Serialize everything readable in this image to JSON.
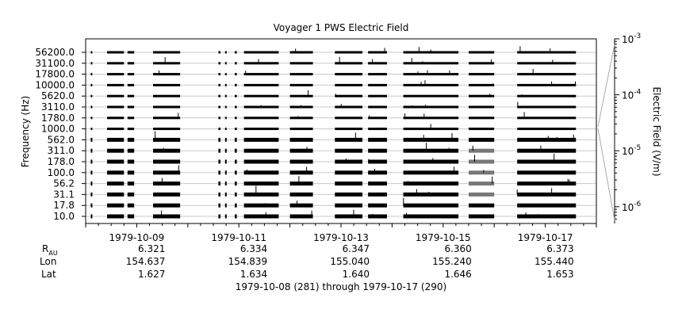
{
  "chart_data": {
    "type": "bar",
    "title": "Voyager 1 PWS Electric Field",
    "ylabel": "Frequency (Hz)",
    "y2label": "Electric Field (V/m)",
    "footer": "1979-10-08 (281) through 1979-10-17 (290)",
    "channels": [
      "56200.0",
      "31100.0",
      "17800.0",
      "10000.0",
      "5620.0",
      "3110.0",
      "1780.0",
      "1000.0",
      "562.0",
      "311.0",
      "178.0",
      "100.0",
      "56.2",
      "31.1",
      "17.8",
      "10.0"
    ],
    "x_ticks": [
      "1979-10-09",
      "1979-10-11",
      "1979-10-13",
      "1979-10-15",
      "1979-10-17"
    ],
    "x_range_days": [
      0,
      10
    ],
    "y2_ticks": [
      "10^-3",
      "10^-4",
      "10^-5",
      "10^-6"
    ],
    "y2_scale": "log",
    "ephemeris": {
      "row_labels": [
        "R_AU",
        "Lon",
        "Lat"
      ],
      "rau": [
        "6.321",
        "6.334",
        "6.347",
        "6.360",
        "6.373"
      ],
      "lon": [
        "154.637",
        "154.839",
        "155.040",
        "155.240",
        "155.440"
      ],
      "lat": [
        "1.627",
        "1.634",
        "1.640",
        "1.646",
        "1.653"
      ]
    },
    "data_segments_days": [
      [
        0.1,
        0.12
      ],
      [
        0.42,
        0.75
      ],
      [
        0.82,
        0.95
      ],
      [
        1.32,
        1.85
      ],
      [
        2.6,
        2.64
      ],
      [
        2.73,
        2.76
      ],
      [
        2.92,
        2.96
      ],
      [
        3.1,
        3.78
      ],
      [
        4.0,
        4.45
      ],
      [
        4.88,
        5.42
      ],
      [
        5.53,
        5.9
      ],
      [
        6.22,
        7.3
      ],
      [
        7.5,
        8.0
      ],
      [
        8.45,
        9.6
      ]
    ]
  }
}
